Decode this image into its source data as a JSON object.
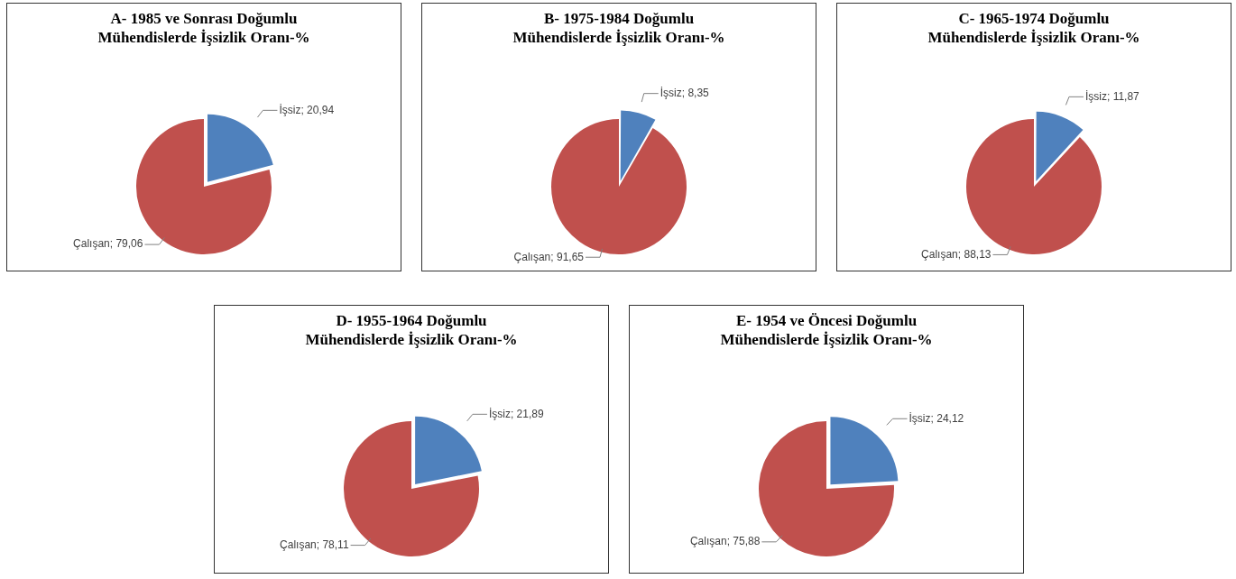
{
  "chart_data": [
    {
      "type": "pie",
      "title": "A- 1985 ve Sonrası Doğumlu\nMühendislerde İşsizlik Oranı-%",
      "categories": [
        "İşsiz",
        "Çalışan"
      ],
      "values": [
        20.94,
        79.06
      ],
      "colors": [
        "#4f81bd",
        "#c0504d"
      ],
      "value_labels": [
        "20,94",
        "79,06"
      ],
      "legend": false
    },
    {
      "type": "pie",
      "title": "B- 1975-1984 Doğumlu\nMühendislerde İşsizlik Oranı-%",
      "categories": [
        "İşsiz",
        "Çalışan"
      ],
      "values": [
        8.35,
        91.65
      ],
      "colors": [
        "#4f81bd",
        "#c0504d"
      ],
      "value_labels": [
        "8,35",
        "91,65"
      ],
      "legend": false
    },
    {
      "type": "pie",
      "title": "C- 1965-1974 Doğumlu\nMühendislerde İşsizlik Oranı-%",
      "categories": [
        "İşsiz",
        "Çalışan"
      ],
      "values": [
        11.87,
        88.13
      ],
      "colors": [
        "#4f81bd",
        "#c0504d"
      ],
      "value_labels": [
        "11,87",
        "88,13"
      ],
      "legend": false
    },
    {
      "type": "pie",
      "title": "D- 1955-1964 Doğumlu\nMühendislerde İşsizlik Oranı-%",
      "categories": [
        "İşsiz",
        "Çalışan"
      ],
      "values": [
        21.89,
        78.11
      ],
      "colors": [
        "#4f81bd",
        "#c0504d"
      ],
      "value_labels": [
        "21,89",
        "78,11"
      ],
      "legend": false
    },
    {
      "type": "pie",
      "title": "E- 1954 ve Öncesi Doğumlu\nMühendislerde İşsizlik Oranı-%",
      "categories": [
        "İşsiz",
        "Çalışan"
      ],
      "values": [
        24.12,
        75.88
      ],
      "colors": [
        "#4f81bd",
        "#c0504d"
      ],
      "value_labels": [
        "24,12",
        "75,88"
      ],
      "legend": false
    }
  ]
}
